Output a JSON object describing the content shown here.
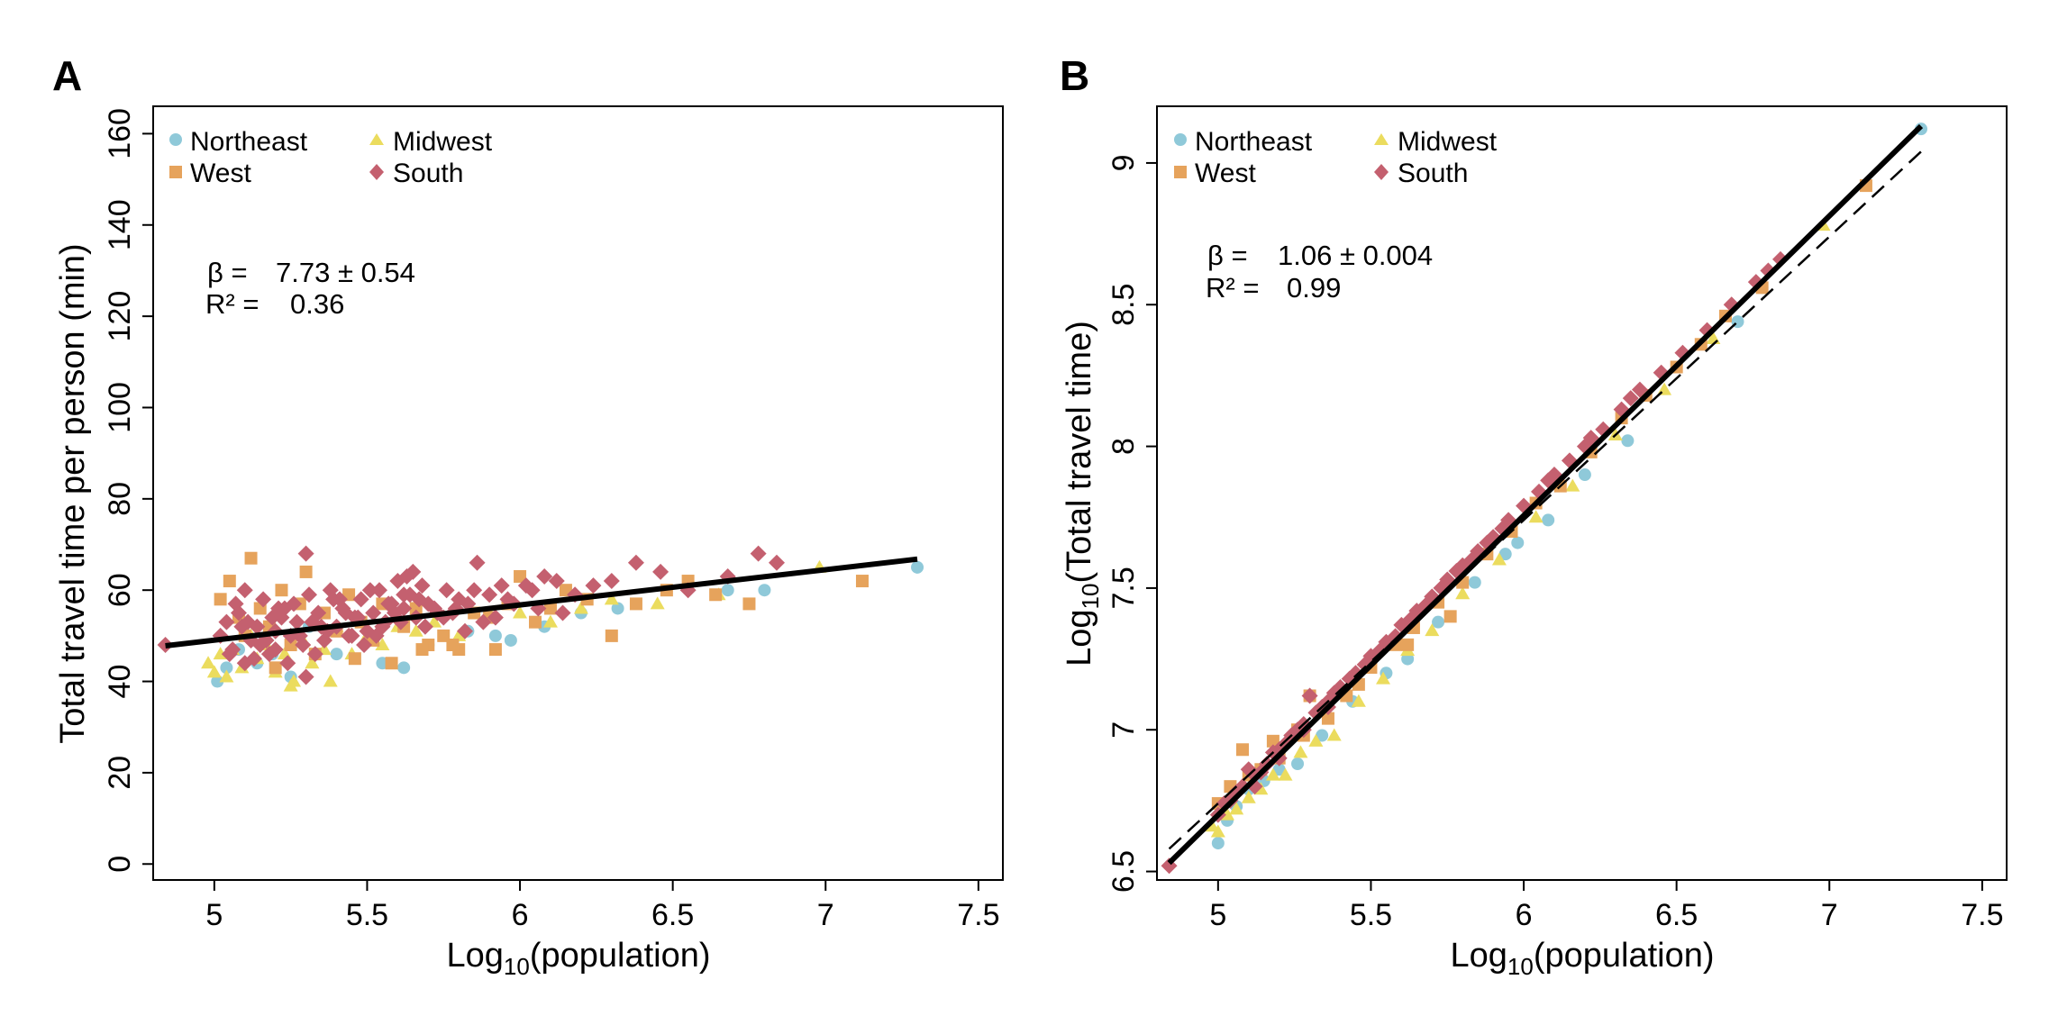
{
  "colors": {
    "Northeast": "#8fc9d9",
    "West": "#e6a35c",
    "Midwest": "#ebdc5e",
    "South": "#c4606f",
    "fit": "#000000"
  },
  "chart_data": [
    {
      "panel": "A",
      "type": "scatter",
      "xlabel_main": "Log",
      "xlabel_sub": "10",
      "xlabel_rest": "(population)",
      "ylabel": "Total travel time per person (min)",
      "xlim": [
        4.8,
        7.58
      ],
      "ylim": [
        -3.5,
        166
      ],
      "xticks": [
        5,
        5.5,
        6,
        6.5,
        7,
        7.5
      ],
      "xtick_labels": [
        "5",
        "5.5",
        "6",
        "6.5",
        "7",
        "7.5"
      ],
      "yticks": [
        0,
        20,
        40,
        60,
        80,
        100,
        120,
        140,
        160
      ],
      "ytick_labels": [
        "0",
        "20",
        "40",
        "60",
        "80",
        "100",
        "120",
        "140",
        "160"
      ],
      "legend": [
        {
          "name": "Northeast",
          "marker": "circle"
        },
        {
          "name": "Midwest",
          "marker": "triangle"
        },
        {
          "name": "West",
          "marker": "square"
        },
        {
          "name": "South",
          "marker": "diamond"
        }
      ],
      "annotation": {
        "beta_label": "β =",
        "beta_value": "7.73 ±  0.54",
        "r2_label": "R² =",
        "r2_value": "0.36"
      },
      "fit_line": {
        "x": [
          4.84,
          7.3
        ],
        "y": [
          47.8,
          66.8
        ]
      },
      "series": [
        {
          "name": "South",
          "marker": "diamond",
          "x": [
            4.84,
            5.02,
            5.04,
            5.06,
            5.08,
            5.1,
            5.12,
            5.14,
            5.16,
            5.18,
            5.2,
            5.22,
            5.24,
            5.26,
            5.28,
            5.3,
            5.32,
            5.34,
            5.36,
            5.38,
            5.4,
            5.42,
            5.44,
            5.46,
            5.48,
            5.5,
            5.52,
            5.54,
            5.56,
            5.58,
            5.6,
            5.62,
            5.64,
            5.66,
            5.68,
            5.7,
            5.73,
            5.76,
            5.8,
            5.83,
            5.86,
            5.9,
            5.94,
            5.98,
            6.04,
            6.08,
            6.12,
            6.18,
            6.24,
            6.3,
            6.38,
            6.46,
            6.55,
            6.68,
            6.78,
            6.84,
            5.05,
            5.11,
            5.17,
            5.23,
            5.29,
            5.35,
            5.41,
            5.47,
            5.53,
            5.59,
            5.63,
            5.69,
            5.79,
            5.88,
            5.07,
            5.13,
            5.19,
            5.25,
            5.31,
            5.37,
            5.43,
            5.49,
            5.57,
            5.61,
            5.67,
            5.75,
            5.85,
            5.96,
            6.06,
            5.09,
            5.15,
            5.21,
            5.27,
            5.33,
            5.39,
            5.45,
            5.51,
            5.55,
            5.65,
            5.72,
            5.82,
            5.92,
            6.02,
            6.14,
            5.1,
            5.2,
            5.3,
            5.62,
            5.78
          ],
          "y": [
            48,
            50,
            53,
            47,
            55,
            60,
            49,
            52,
            58,
            46,
            51,
            54,
            44,
            57,
            50,
            68,
            53,
            55,
            49,
            60,
            52,
            56,
            50,
            54,
            58,
            51,
            55,
            60,
            53,
            57,
            62,
            56,
            59,
            54,
            61,
            57,
            55,
            60,
            58,
            57,
            66,
            59,
            61,
            57,
            60,
            63,
            62,
            59,
            61,
            62,
            66,
            64,
            60,
            63,
            68,
            66,
            46,
            53,
            49,
            56,
            48,
            52,
            58,
            54,
            50,
            55,
            63,
            52,
            56,
            53,
            57,
            45,
            54,
            50,
            59,
            51,
            55,
            48,
            57,
            53,
            58,
            54,
            60,
            58,
            56,
            52,
            48,
            56,
            53,
            46,
            58,
            50,
            60,
            52,
            64,
            56,
            51,
            54,
            61,
            55,
            44,
            47,
            41,
            59,
            55
          ]
        },
        {
          "name": "West",
          "marker": "square",
          "x": [
            5.02,
            5.05,
            5.08,
            5.1,
            5.12,
            5.15,
            5.18,
            5.22,
            5.25,
            5.28,
            5.3,
            5.33,
            5.36,
            5.4,
            5.44,
            5.48,
            5.52,
            5.55,
            5.58,
            5.62,
            5.66,
            5.7,
            5.75,
            5.8,
            5.85,
            5.9,
            5.96,
            6.0,
            6.05,
            6.1,
            6.15,
            6.22,
            6.3,
            6.38,
            6.48,
            6.55,
            6.64,
            6.75,
            7.12,
            5.2,
            5.46,
            5.68,
            5.78,
            5.92
          ],
          "y": [
            58,
            62,
            54,
            50,
            67,
            56,
            52,
            60,
            48,
            57,
            64,
            46,
            55,
            51,
            59,
            53,
            49,
            57,
            44,
            52,
            56,
            48,
            50,
            47,
            55,
            54,
            57,
            63,
            53,
            56,
            60,
            58,
            50,
            57,
            60,
            62,
            59,
            57,
            62,
            43,
            45,
            47,
            48,
            47
          ]
        },
        {
          "name": "Midwest",
          "marker": "triangle",
          "x": [
            4.98,
            5.0,
            5.02,
            5.04,
            5.06,
            5.09,
            5.12,
            5.14,
            5.17,
            5.2,
            5.23,
            5.26,
            5.29,
            5.32,
            5.36,
            5.4,
            5.45,
            5.5,
            5.55,
            5.6,
            5.66,
            5.72,
            5.8,
            5.9,
            6.0,
            6.1,
            6.2,
            6.3,
            6.45,
            6.65,
            6.98,
            5.25,
            5.38
          ],
          "y": [
            44,
            42,
            46,
            41,
            47,
            43,
            50,
            45,
            48,
            42,
            46,
            40,
            49,
            44,
            47,
            52,
            46,
            50,
            48,
            52,
            51,
            53,
            50,
            55,
            55,
            53,
            56,
            58,
            57,
            59,
            65,
            39,
            40
          ]
        },
        {
          "name": "Northeast",
          "marker": "circle",
          "x": [
            5.01,
            5.04,
            5.08,
            5.14,
            5.19,
            5.25,
            5.31,
            5.4,
            5.55,
            5.62,
            5.7,
            5.83,
            5.92,
            5.97,
            6.08,
            6.2,
            6.32,
            6.68,
            6.8,
            7.3
          ],
          "y": [
            40,
            43,
            47,
            44,
            46,
            41,
            52,
            46,
            44,
            43,
            48,
            51,
            50,
            49,
            52,
            55,
            56,
            60,
            60,
            65
          ]
        }
      ]
    },
    {
      "panel": "B",
      "type": "scatter",
      "xlabel_main": "Log",
      "xlabel_sub": "10",
      "xlabel_rest": "(population)",
      "ylabel_main": "Log",
      "ylabel_sub": "10",
      "ylabel_rest": "(Total travel time)",
      "xlim": [
        4.8,
        7.58
      ],
      "ylim": [
        6.47,
        9.2
      ],
      "xticks": [
        5,
        5.5,
        6,
        6.5,
        7,
        7.5
      ],
      "xtick_labels": [
        "5",
        "5.5",
        "6",
        "6.5",
        "7",
        "7.5"
      ],
      "yticks": [
        6.5,
        7,
        7.5,
        8,
        8.5,
        9
      ],
      "ytick_labels": [
        "6.5",
        "7",
        "7.5",
        "8",
        "8.5",
        "9"
      ],
      "legend": [
        {
          "name": "Northeast",
          "marker": "circle"
        },
        {
          "name": "Midwest",
          "marker": "triangle"
        },
        {
          "name": "West",
          "marker": "square"
        },
        {
          "name": "South",
          "marker": "diamond"
        }
      ],
      "annotation": {
        "beta_label": "β =",
        "beta_value": "1.06 ± 0.004",
        "r2_label": "R² =",
        "r2_value": "0.99"
      },
      "fit_line": {
        "x": [
          4.84,
          7.3
        ],
        "y": [
          6.53,
          9.13
        ]
      },
      "reference_line": {
        "x": [
          4.84,
          7.3
        ],
        "y": [
          6.58,
          9.04
        ]
      },
      "series": [
        {
          "name": "South",
          "marker": "diamond",
          "x": [
            4.84,
            5.0,
            5.04,
            5.08,
            5.12,
            5.16,
            5.2,
            5.24,
            5.28,
            5.32,
            5.36,
            5.4,
            5.45,
            5.5,
            5.55,
            5.6,
            5.65,
            5.7,
            5.75,
            5.8,
            5.85,
            5.9,
            5.95,
            6.0,
            6.05,
            6.1,
            6.15,
            6.2,
            6.26,
            6.32,
            6.38,
            6.45,
            6.52,
            6.6,
            6.68,
            6.76,
            6.8,
            6.84,
            5.02,
            5.06,
            5.1,
            5.14,
            5.18,
            5.22,
            5.26,
            5.3,
            5.34,
            5.38,
            5.43,
            5.48,
            5.53,
            5.58,
            5.63,
            5.68,
            5.73,
            5.78,
            5.83,
            5.88,
            5.93,
            6.08,
            6.22,
            6.35,
            5.12,
            5.2,
            5.28,
            5.36
          ],
          "y": [
            6.52,
            6.7,
            6.75,
            6.8,
            6.84,
            6.88,
            6.93,
            6.98,
            7.02,
            7.06,
            7.1,
            7.15,
            7.2,
            7.26,
            7.31,
            7.37,
            7.42,
            7.47,
            7.53,
            7.58,
            7.63,
            7.68,
            7.74,
            7.79,
            7.84,
            7.9,
            7.95,
            8.0,
            8.06,
            8.13,
            8.2,
            8.26,
            8.33,
            8.41,
            8.5,
            8.58,
            8.62,
            8.66,
            6.74,
            6.78,
            6.86,
            6.85,
            6.92,
            6.95,
            7.0,
            7.12,
            7.08,
            7.13,
            7.18,
            7.23,
            7.28,
            7.33,
            7.39,
            7.44,
            7.5,
            7.56,
            7.6,
            7.66,
            7.71,
            7.88,
            8.03,
            8.17,
            6.8,
            6.9,
            7.0,
            7.08
          ]
        },
        {
          "name": "West",
          "marker": "square",
          "x": [
            5.0,
            5.04,
            5.08,
            5.14,
            5.2,
            5.26,
            5.3,
            5.36,
            5.42,
            5.5,
            5.58,
            5.64,
            5.72,
            5.8,
            5.88,
            5.96,
            6.04,
            6.12,
            6.22,
            6.32,
            6.4,
            6.5,
            6.58,
            6.66,
            6.78,
            7.12,
            5.1,
            5.18,
            5.28,
            5.46,
            5.62,
            5.76
          ],
          "y": [
            6.74,
            6.8,
            6.93,
            6.86,
            6.9,
            7.0,
            7.12,
            7.04,
            7.12,
            7.22,
            7.3,
            7.36,
            7.45,
            7.52,
            7.62,
            7.7,
            7.8,
            7.86,
            7.98,
            8.1,
            8.18,
            8.28,
            8.36,
            8.46,
            8.56,
            8.92,
            6.84,
            6.96,
            6.98,
            7.16,
            7.3,
            7.4
          ]
        },
        {
          "name": "Midwest",
          "marker": "triangle",
          "x": [
            4.98,
            5.0,
            5.03,
            5.06,
            5.1,
            5.14,
            5.18,
            5.22,
            5.27,
            5.32,
            5.38,
            5.46,
            5.54,
            5.62,
            5.7,
            5.8,
            5.92,
            6.04,
            6.16,
            6.3,
            6.46,
            6.62,
            6.98
          ],
          "y": [
            6.66,
            6.64,
            6.7,
            6.72,
            6.76,
            6.79,
            6.84,
            6.84,
            6.92,
            6.96,
            6.98,
            7.1,
            7.18,
            7.28,
            7.35,
            7.48,
            7.6,
            7.75,
            7.86,
            8.04,
            8.2,
            8.38,
            8.78
          ]
        },
        {
          "name": "Northeast",
          "marker": "circle",
          "x": [
            5.0,
            5.03,
            5.06,
            5.1,
            5.15,
            5.2,
            5.26,
            5.34,
            5.44,
            5.55,
            5.62,
            5.72,
            5.84,
            5.94,
            5.98,
            6.08,
            6.2,
            6.34,
            6.7,
            6.78,
            7.3
          ],
          "y": [
            6.6,
            6.68,
            6.73,
            6.79,
            6.82,
            6.86,
            6.88,
            6.98,
            7.1,
            7.2,
            7.25,
            7.38,
            7.52,
            7.62,
            7.66,
            7.74,
            7.9,
            8.02,
            8.44,
            8.56,
            9.12
          ]
        }
      ]
    }
  ]
}
